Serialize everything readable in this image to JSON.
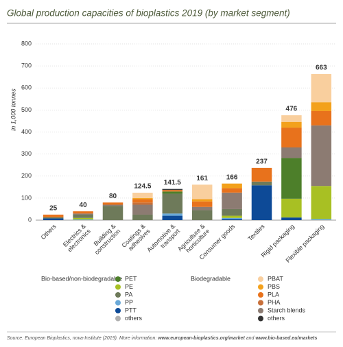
{
  "chart_data": {
    "type": "stacked_bar",
    "title": "Global production capacities of bioplastics 2019 (by market segment)",
    "y_label": "in 1,000 tonnes",
    "categories": [
      "Others",
      "Electrics &\nelectronics",
      "Building &\nconstruction",
      "Coatings &\nadhesives",
      "Automotive &\ntransport",
      "Agriculture &\nhorticulture",
      "Consumer goods",
      "Textiles",
      "Rigid packaging",
      "Flexible packaging"
    ],
    "totals": [
      25,
      40,
      80,
      124.5,
      141.5,
      161,
      166,
      237,
      476,
      663
    ],
    "ylim": [
      0,
      800
    ],
    "yticks": [
      0,
      100,
      200,
      300,
      400,
      500,
      600,
      700,
      800
    ],
    "grid": true,
    "groups": [
      "Bio-based/non-biodegradable",
      "Biodegradable"
    ],
    "series": [
      {
        "name": "PTT",
        "group": 0,
        "color": "#0d4a97",
        "values": [
          8,
          0,
          0,
          0,
          20,
          0,
          5,
          158,
          12,
          0
        ]
      },
      {
        "name": "PP",
        "group": 0,
        "color": "#6aa9d8",
        "values": [
          0,
          3,
          0,
          0,
          10,
          0,
          5,
          0,
          0,
          5
        ]
      },
      {
        "name": "PE",
        "group": 0,
        "color": "#a8c023",
        "values": [
          0,
          7,
          0,
          0,
          0,
          0,
          10,
          0,
          85,
          150
        ]
      },
      {
        "name": "PA",
        "group": 0,
        "color": "#6e7a5a",
        "values": [
          5,
          15,
          65,
          25,
          90,
          45,
          30,
          17,
          0,
          0
        ]
      },
      {
        "name": "PET",
        "group": 0,
        "color": "#4d7f2a",
        "values": [
          0,
          0,
          0,
          0,
          10,
          0,
          0,
          0,
          185,
          0
        ]
      },
      {
        "name": "others",
        "group": 0,
        "color": "#b0b0b0",
        "values": [
          0,
          0,
          0,
          0,
          0,
          0,
          0,
          0,
          0,
          0
        ]
      },
      {
        "name": "Starch blends",
        "group": 1,
        "color": "#8c7b72",
        "values": [
          0,
          5,
          5,
          45,
          0,
          15,
          75,
          0,
          48,
          275
        ]
      },
      {
        "name": "PHA",
        "group": 1,
        "color": "#c8703a",
        "values": [
          0,
          0,
          0,
          10,
          0,
          0,
          0,
          0,
          0,
          0
        ]
      },
      {
        "name": "PLA",
        "group": 1,
        "color": "#e8721c",
        "values": [
          12,
          10,
          10,
          15,
          6.5,
          25,
          20,
          62,
          90,
          65
        ]
      },
      {
        "name": "PBS",
        "group": 1,
        "color": "#f3a11c",
        "values": [
          0,
          0,
          0,
          5,
          0,
          10,
          21,
          0,
          26,
          40
        ]
      },
      {
        "name": "PBAT",
        "group": 1,
        "color": "#f9cf9e",
        "values": [
          0,
          0,
          0,
          24.5,
          0,
          66,
          0,
          0,
          30,
          128
        ]
      },
      {
        "name": "others",
        "group": 1,
        "color": "#333333",
        "values": [
          0,
          0,
          0,
          0,
          5,
          0,
          0,
          0,
          0,
          0
        ]
      }
    ],
    "legend_order": [
      4,
      2,
      3,
      1,
      0,
      5,
      10,
      9,
      8,
      7,
      6,
      11
    ]
  },
  "source": {
    "text": "Source: European Bioplastics, nova-Institute (2019). More information: ",
    "link1": "www.european-bioplastics.org/market",
    "joiner": " and ",
    "link2": "www.bio-based.eu/markets"
  }
}
